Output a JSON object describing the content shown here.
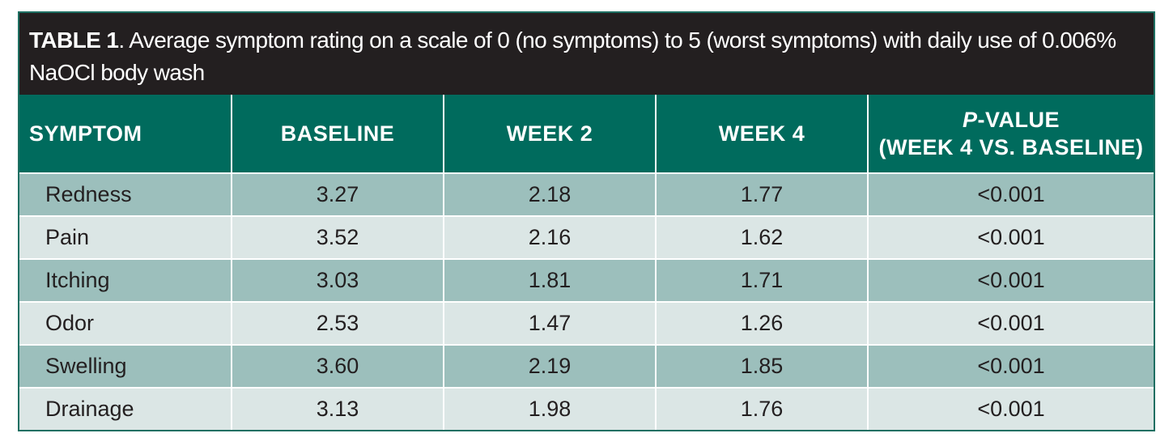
{
  "caption": {
    "label": "TABLE 1",
    "text": ". Average symptom rating on a scale of 0 (no symptoms) to 5 (worst symptoms) with daily use of 0.006% NaOCl body wash"
  },
  "header": {
    "symptom": "SYMPTOM",
    "baseline": "BASELINE",
    "week2": "WEEK 2",
    "week4": "WEEK 4",
    "pvalue_letter": "P",
    "pvalue_rest": "-VALUE",
    "pvalue_sub": "(WEEK 4 VS. BASELINE)"
  },
  "rows": [
    {
      "symptom": "Redness",
      "baseline": "3.27",
      "week2": "2.18",
      "week4": "1.77",
      "pvalue": "<0.001"
    },
    {
      "symptom": "Pain",
      "baseline": "3.52",
      "week2": "2.16",
      "week4": "1.62",
      "pvalue": "<0.001"
    },
    {
      "symptom": "Itching",
      "baseline": "3.03",
      "week2": "1.81",
      "week4": "1.71",
      "pvalue": "<0.001"
    },
    {
      "symptom": "Odor",
      "baseline": "2.53",
      "week2": "1.47",
      "week4": "1.26",
      "pvalue": "<0.001"
    },
    {
      "symptom": "Swelling",
      "baseline": "3.60",
      "week2": "2.19",
      "week4": "1.85",
      "pvalue": "<0.001"
    },
    {
      "symptom": "Drainage",
      "baseline": "3.13",
      "week2": "1.98",
      "week4": "1.76",
      "pvalue": "<0.001"
    }
  ],
  "colors": {
    "header_bg": "#006b5d",
    "caption_bg": "#231f20",
    "row_dark": "#9cbfbc",
    "row_light": "#dbe6e5",
    "border": "#1e6f62"
  }
}
